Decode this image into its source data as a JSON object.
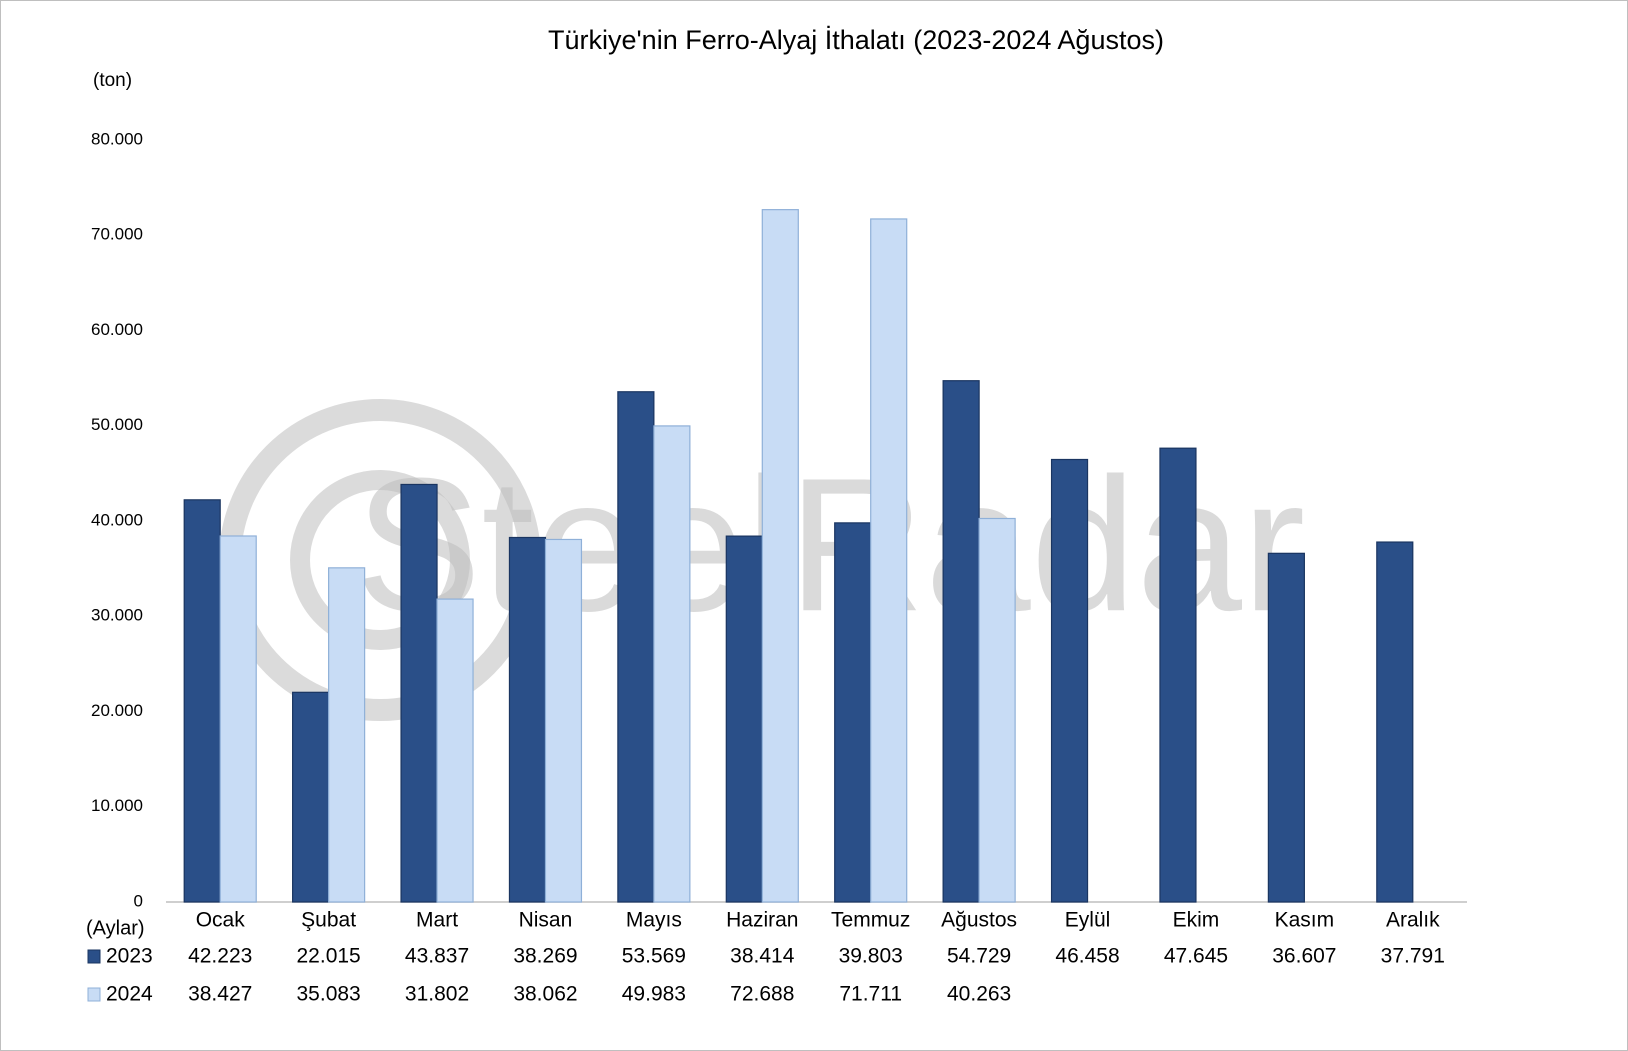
{
  "chart_data": {
    "type": "bar",
    "title": "Türkiye'nin Ferro-Alyaj İthalatı (2023-2024 Ağustos)",
    "y_label": "(ton)",
    "x_label": "(Aylar)",
    "watermark": "SteelRadar",
    "categories": [
      "Ocak",
      "Şubat",
      "Mart",
      "Nisan",
      "Mayıs",
      "Haziran",
      "Temmuz",
      "Ağustos",
      "Eylül",
      "Ekim",
      "Kasım",
      "Aralık"
    ],
    "series": [
      {
        "name": "2023",
        "color": "#2a4f88",
        "values": [
          42223,
          22015,
          43837,
          38269,
          53569,
          38414,
          39803,
          54729,
          46458,
          47645,
          36607,
          37791
        ],
        "value_labels": [
          "42.223",
          "22.015",
          "43.837",
          "38.269",
          "53.569",
          "38.414",
          "39.803",
          "54.729",
          "46.458",
          "47.645",
          "36.607",
          "37.791"
        ]
      },
      {
        "name": "2024",
        "color": "#c8dcf5",
        "values": [
          38427,
          35083,
          31802,
          38062,
          49983,
          72688,
          71711,
          40263,
          null,
          null,
          null,
          null
        ],
        "value_labels": [
          "38.427",
          "35.083",
          "31.802",
          "38.062",
          "49.983",
          "72.688",
          "71.711",
          "40.263",
          null,
          null,
          null,
          null
        ]
      }
    ],
    "ylim": [
      0,
      80000
    ],
    "yticks": [
      0,
      {
        "value": 10000,
        "label": "10.000"
      },
      {
        "value": 20000,
        "label": "20.000"
      },
      {
        "value": 30000,
        "label": "30.000"
      },
      {
        "value": 40000,
        "label": "40.000"
      },
      {
        "value": 50000,
        "label": "50.000"
      },
      {
        "value": 60000,
        "label": "60.000"
      },
      {
        "value": 70000,
        "label": "70.000"
      },
      {
        "value": 80000,
        "label": "80.000"
      }
    ],
    "grid": false
  }
}
